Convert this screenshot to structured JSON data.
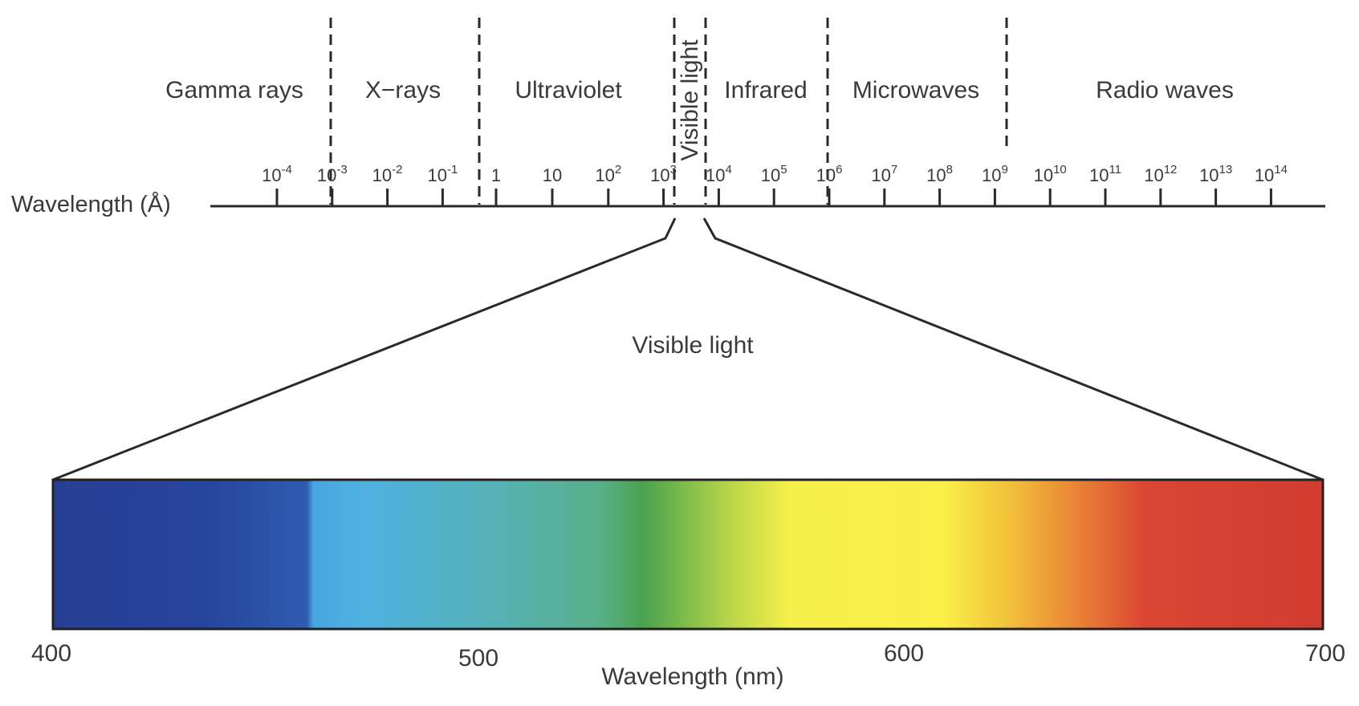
{
  "spectrum": {
    "axis_label": "Wavelength (Å)",
    "regions": [
      {
        "label": "Gamma rays"
      },
      {
        "label": "X−rays"
      },
      {
        "label": "Ultraviolet"
      },
      {
        "label": "Visible light",
        "vertical": true
      },
      {
        "label": "Infrared"
      },
      {
        "label": "Microwaves"
      },
      {
        "label": "Radio waves"
      }
    ],
    "boundaries": [
      "10^-3",
      "10^0.5",
      "10^3.3",
      "10^3.9",
      "10^6",
      "10^9"
    ],
    "ticks": [
      {
        "base": "10",
        "exp": "-4"
      },
      {
        "base": "10",
        "exp": "-3"
      },
      {
        "base": "10",
        "exp": "-2"
      },
      {
        "base": "10",
        "exp": "-1"
      },
      {
        "base": "1",
        "exp": ""
      },
      {
        "base": "10",
        "exp": ""
      },
      {
        "base": "10",
        "exp": "2"
      },
      {
        "base": "10",
        "exp": "3"
      },
      {
        "base": "10",
        "exp": "4"
      },
      {
        "base": "10",
        "exp": "5"
      },
      {
        "base": "10",
        "exp": "6"
      },
      {
        "base": "10",
        "exp": "7"
      },
      {
        "base": "10",
        "exp": "8"
      },
      {
        "base": "10",
        "exp": "9"
      },
      {
        "base": "10",
        "exp": "10"
      },
      {
        "base": "10",
        "exp": "11"
      },
      {
        "base": "10",
        "exp": "12"
      },
      {
        "base": "10",
        "exp": "13"
      },
      {
        "base": "10",
        "exp": "14"
      }
    ]
  },
  "visible": {
    "title": "Visible light",
    "axis_label": "Wavelength (nm)",
    "ticks": [
      "400",
      "500",
      "600",
      "700"
    ],
    "gradient_colors": [
      "#263f94",
      "#2a4ea8",
      "#3a8fcf",
      "#4fb0e3",
      "#57b2b5",
      "#56b084",
      "#4aa24e",
      "#a3cc4a",
      "#f5ef4a",
      "#fbef48",
      "#f5d93d",
      "#ee9138",
      "#dd4532",
      "#d23c2f"
    ]
  }
}
